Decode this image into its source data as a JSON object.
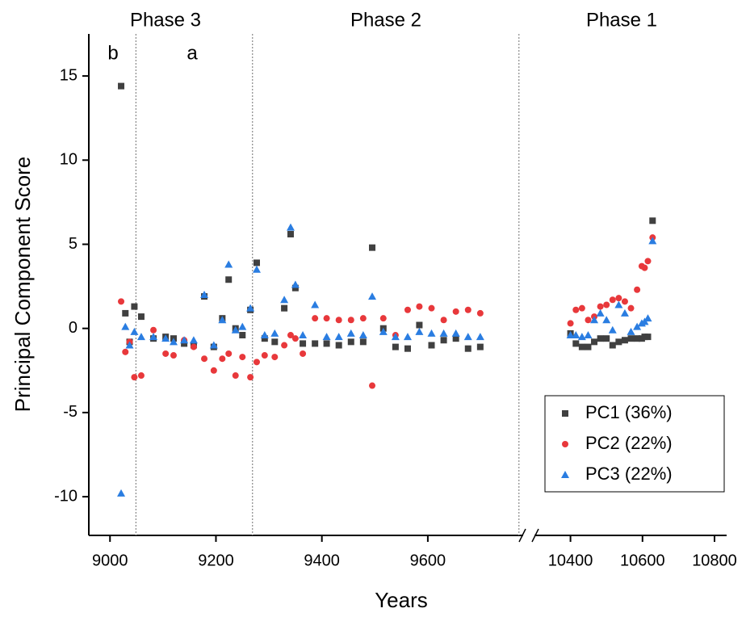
{
  "chart_data": {
    "type": "scatter",
    "ylabel": "Principal Component Score",
    "xlabel": "Years",
    "xlim": [
      8960,
      10800
    ],
    "xbreak": [
      9780,
      10300
    ],
    "xticks": [
      9000,
      9200,
      9400,
      9600,
      10400,
      10600,
      10800
    ],
    "ylim": [
      -12.3,
      17.5
    ],
    "yticks": [
      15,
      10,
      5,
      0,
      -5,
      -10
    ],
    "boundaries": [
      9049,
      9269,
      9772
    ],
    "annotations": [
      "Phase 3",
      "Phase 2",
      "Phase 1",
      "b",
      "a"
    ],
    "legend": "lower right",
    "x": [
      9021,
      9029,
      9037,
      9046,
      9059,
      9082,
      9105,
      9120,
      9140,
      9158,
      9178,
      9196,
      9212,
      9224,
      9237,
      9250,
      9265,
      9277,
      9292,
      9311,
      9329,
      9341,
      9350,
      9364,
      9387,
      9409,
      9432,
      9455,
      9478,
      9495,
      9516,
      9539,
      9562,
      9584,
      9607,
      9630,
      9653,
      9676,
      9699,
      10400,
      10415,
      10432,
      10449,
      10466,
      10483,
      10500,
      10517,
      10534,
      10551,
      10568,
      10585,
      10598,
      10606,
      10615,
      10628
    ],
    "series": [
      {
        "name": "PC1 (36%)",
        "color": "#404040",
        "marker": "square",
        "values": [
          14.4,
          0.9,
          -0.8,
          1.3,
          0.7,
          -0.6,
          -0.5,
          -0.6,
          -0.9,
          -1.0,
          1.9,
          -1.1,
          0.6,
          2.9,
          0.0,
          -0.4,
          1.1,
          3.9,
          -0.6,
          -0.8,
          1.2,
          5.6,
          2.4,
          -0.9,
          -0.9,
          -0.9,
          -1.0,
          -0.8,
          -0.8,
          4.8,
          0.0,
          -1.1,
          -1.2,
          0.2,
          -1.0,
          -0.7,
          -0.6,
          -1.2,
          -1.1,
          -0.3,
          -0.9,
          -1.1,
          -1.1,
          -0.8,
          -0.6,
          -0.6,
          -1.0,
          -0.8,
          -0.7,
          -0.6,
          -0.6,
          -0.6,
          -0.5,
          -0.5,
          6.4
        ]
      },
      {
        "name": "PC2 (22%)",
        "color": "#e8383b",
        "marker": "circle",
        "values": [
          1.6,
          -1.4,
          -0.8,
          -2.9,
          -2.8,
          -0.1,
          -1.5,
          -1.6,
          -0.7,
          -1.1,
          -1.8,
          -2.5,
          -1.8,
          -1.5,
          -2.8,
          -1.7,
          -2.9,
          -2.0,
          -1.6,
          -1.7,
          -1.0,
          -0.4,
          -0.6,
          -1.5,
          0.6,
          0.6,
          0.5,
          0.5,
          0.6,
          -3.4,
          0.6,
          -0.4,
          1.1,
          1.3,
          1.2,
          0.5,
          1.0,
          1.1,
          0.9,
          0.3,
          1.1,
          1.2,
          0.5,
          0.7,
          1.3,
          1.4,
          1.7,
          1.8,
          1.6,
          1.2,
          2.3,
          3.7,
          3.6,
          4.0,
          5.4
        ]
      },
      {
        "name": "PC3 (22%)",
        "color": "#2a7de1",
        "marker": "triangle",
        "values": [
          -9.8,
          0.1,
          -1.0,
          -0.2,
          -0.5,
          -0.5,
          -0.6,
          -0.8,
          -0.7,
          -0.7,
          2.0,
          -1.0,
          0.5,
          3.8,
          -0.1,
          0.1,
          1.2,
          3.5,
          -0.4,
          -0.3,
          1.7,
          6.0,
          2.6,
          -0.4,
          1.4,
          -0.5,
          -0.5,
          -0.3,
          -0.4,
          1.9,
          -0.2,
          -0.5,
          -0.5,
          -0.2,
          -0.3,
          -0.3,
          -0.3,
          -0.5,
          -0.5,
          -0.4,
          -0.4,
          -0.5,
          -0.4,
          0.5,
          0.9,
          0.5,
          -0.1,
          1.4,
          0.9,
          -0.2,
          0.1,
          0.3,
          0.4,
          0.6,
          5.2
        ]
      }
    ]
  }
}
